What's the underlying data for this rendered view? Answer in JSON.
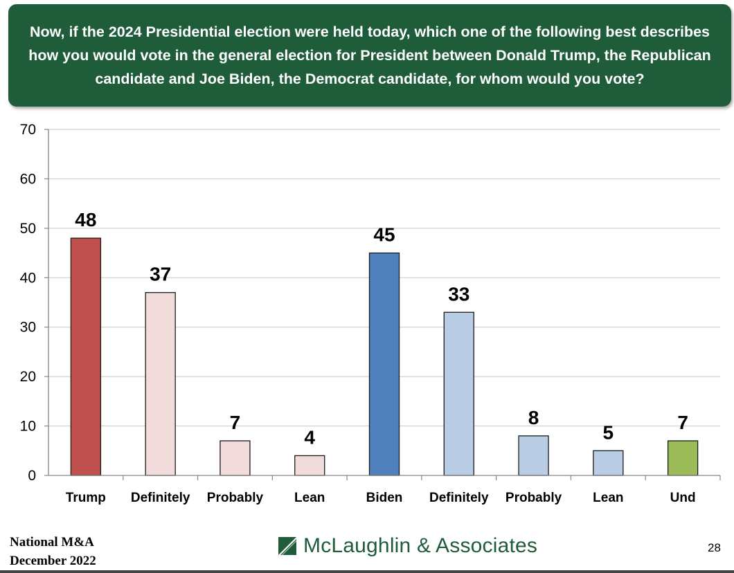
{
  "header": {
    "title": "Now, if the 2024 Presidential election were held today, which one of the following best describes how you would vote in the general election for President between Donald Trump, the Republican candidate and Joe Biden, the Democrat candidate, for whom would you vote?"
  },
  "chart_data": {
    "type": "bar",
    "title": "Now, if the 2024 Presidential election were held today, which one of the following best describes how you would vote in the general election for President between Donald Trump, the Republican candidate and Joe Biden, the Democrat candidate, for whom would you vote?",
    "categories": [
      "Trump",
      "Definitely",
      "Probably",
      "Lean",
      "Biden",
      "Definitely",
      "Probably",
      "Lean",
      "Und"
    ],
    "values": [
      48,
      37,
      7,
      4,
      45,
      33,
      8,
      5,
      7
    ],
    "bar_colors": [
      "#c0504d",
      "#f2dcdb",
      "#f2dcdb",
      "#f2dcdb",
      "#4f81bd",
      "#b9cde5",
      "#b9cde5",
      "#b9cde5",
      "#9bbb59"
    ],
    "ylim": [
      0,
      70
    ],
    "yticks": [
      0,
      10,
      20,
      30,
      40,
      50,
      60,
      70
    ],
    "grid": true,
    "xlabel": "",
    "ylabel": ""
  },
  "footer": {
    "source_line1": "National M&A",
    "source_line2": "December 2022",
    "logo_text": "McLaughlin & Associates",
    "page_number": "28"
  },
  "colors": {
    "banner": "#1e5c3a",
    "logo": "#1e5c3a"
  }
}
